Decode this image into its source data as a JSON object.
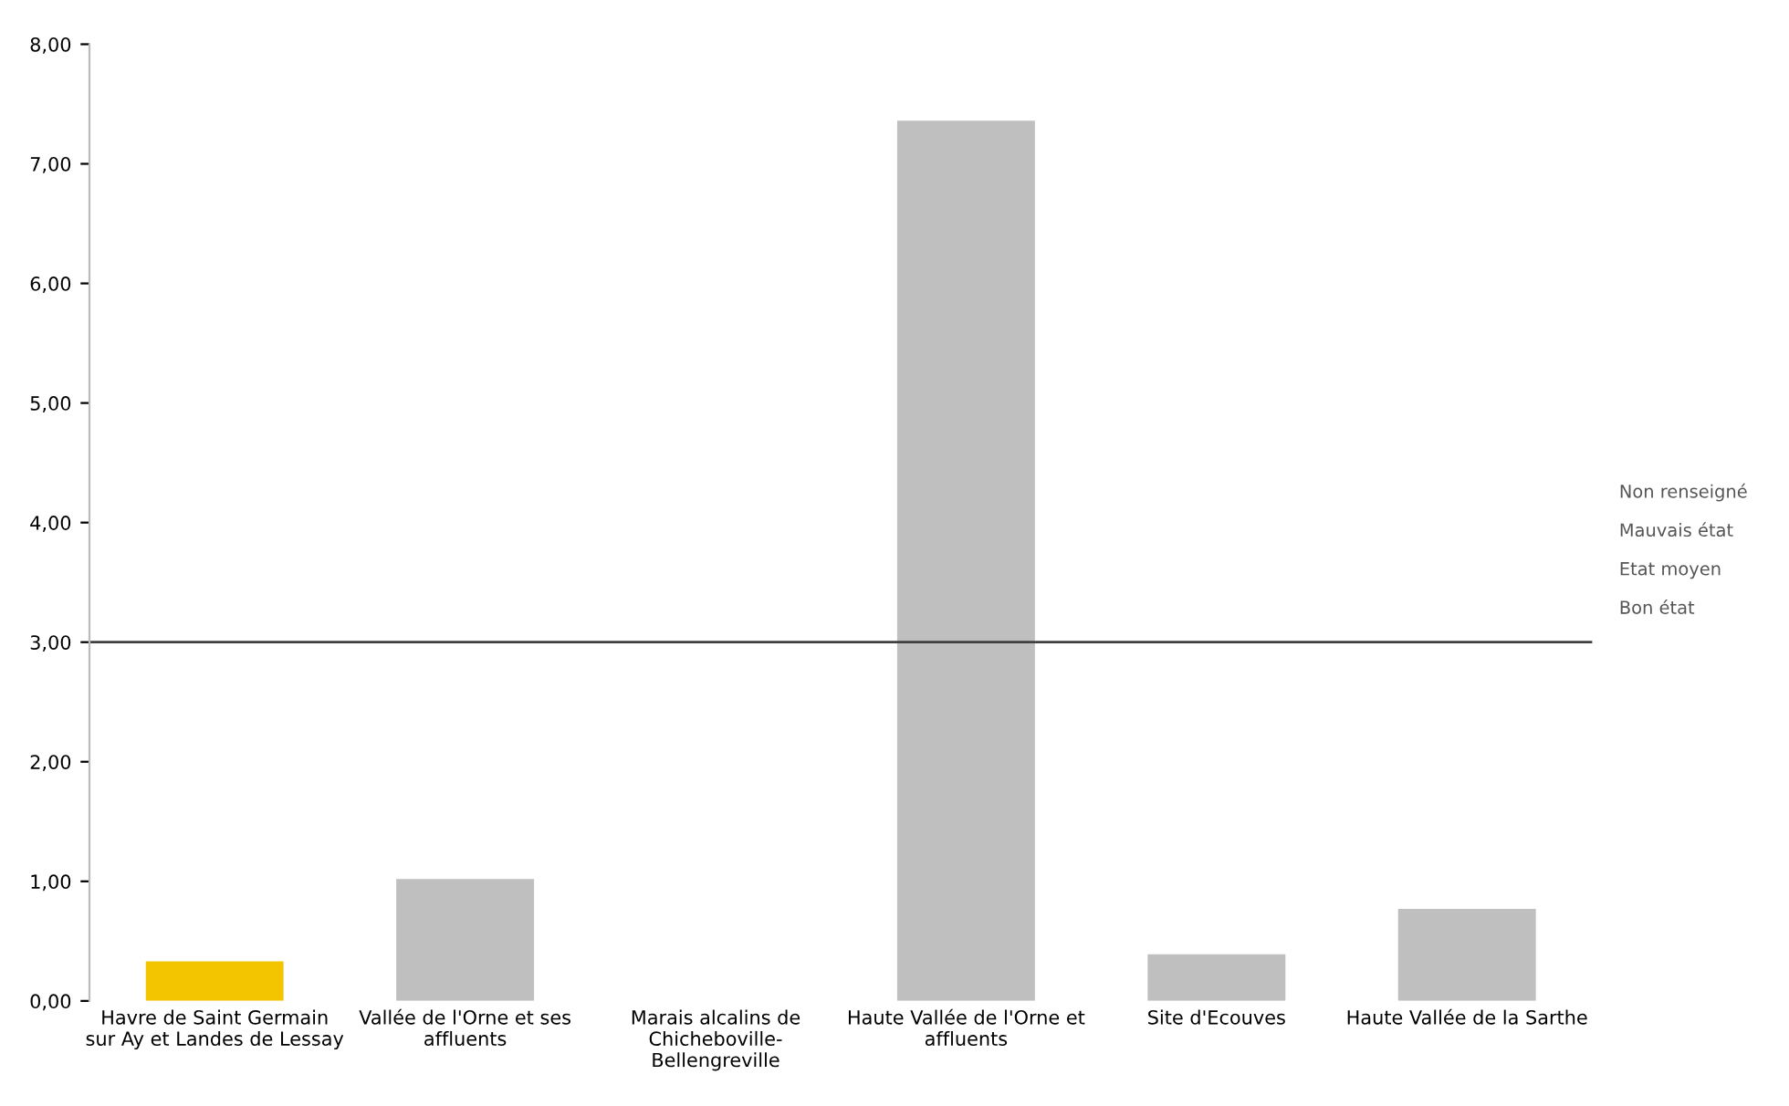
{
  "chart_data": {
    "type": "bar",
    "categories": [
      "Havre de Saint Germain\nsur Ay et Landes de Lessay",
      "Vallée de l'Orne et ses\naffluents",
      "Marais alcalins de\nChicheboville-\nBellengreville",
      "Haute Vallée de l'Orne et\naffluents",
      "Site d'Ecouves",
      "Haute Vallée de la Sarthe"
    ],
    "values": [
      0.33,
      1.02,
      null,
      7.36,
      0.39,
      0.77
    ],
    "colors": [
      "#f2c500",
      "#bfbfbf",
      "#bfbfbf",
      "#bfbfbf",
      "#bfbfbf",
      "#bfbfbf"
    ],
    "ylim": [
      0,
      8
    ],
    "yticks": [
      {
        "value": 0,
        "label": "0,00"
      },
      {
        "value": 1,
        "label": "1,00"
      },
      {
        "value": 2,
        "label": "2,00"
      },
      {
        "value": 3,
        "label": "3,00"
      },
      {
        "value": 4,
        "label": "4,00"
      },
      {
        "value": 5,
        "label": "5,00"
      },
      {
        "value": 6,
        "label": "6,00"
      },
      {
        "value": 7,
        "label": "7,00"
      },
      {
        "value": 8,
        "label": "8,00"
      }
    ],
    "ref_lines": [
      {
        "axis": "y",
        "value": 3,
        "label": null,
        "color": "#404040"
      }
    ],
    "annotations": [
      "Non renseigné",
      "Mauvais état",
      "Etat moyen",
      "Bon état"
    ],
    "grid": false
  }
}
